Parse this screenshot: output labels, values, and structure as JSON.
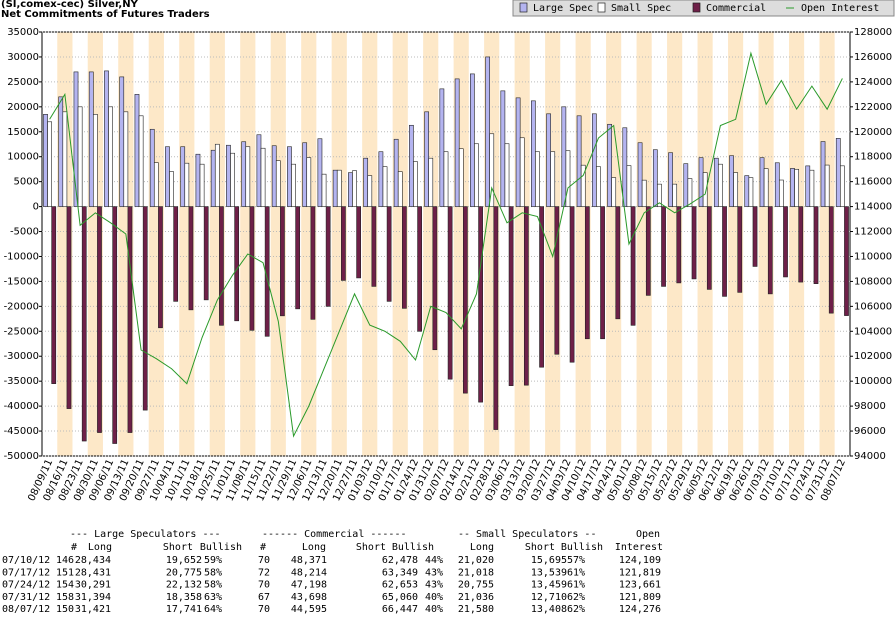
{
  "chart_data": {
    "type": "bar",
    "title": "(SI,comex-cec) Silver,NY",
    "subtitle": "Net Commitments of Futures Traders",
    "categories": [
      "08/09/11",
      "08/16/11",
      "08/23/11",
      "08/30/11",
      "09/06/11",
      "09/13/11",
      "09/20/11",
      "09/27/11",
      "10/04/11",
      "10/11/11",
      "10/18/11",
      "10/25/11",
      "11/01/11",
      "11/08/11",
      "11/15/11",
      "11/22/11",
      "11/29/11",
      "12/06/11",
      "12/13/11",
      "12/20/11",
      "12/27/11",
      "01/03/12",
      "01/10/12",
      "01/17/12",
      "01/24/12",
      "01/31/12",
      "02/07/12",
      "02/14/12",
      "02/21/12",
      "02/28/12",
      "03/06/12",
      "03/13/12",
      "03/20/12",
      "03/27/12",
      "04/03/12",
      "04/10/12",
      "04/17/12",
      "04/24/12",
      "05/01/12",
      "05/08/12",
      "05/15/12",
      "05/22/12",
      "05/29/12",
      "06/05/12",
      "06/12/12",
      "06/19/12",
      "06/26/12",
      "07/03/12",
      "07/10/12",
      "07/17/12",
      "07/24/12",
      "07/31/12",
      "08/07/12"
    ],
    "series": [
      {
        "name": "Large Spec",
        "color": "#b4b4f0",
        "values": [
          18500,
          22000,
          27000,
          27000,
          27200,
          26000,
          22500,
          15500,
          12000,
          12000,
          10500,
          11300,
          12300,
          13000,
          14400,
          12200,
          12000,
          12800,
          13600,
          7300,
          6800,
          9700,
          11000,
          13500,
          16300,
          19000,
          23600,
          25600,
          26600,
          30000,
          23200,
          21800,
          21200,
          18600,
          20000,
          18200,
          18600,
          16500,
          15800,
          12800,
          11400,
          10800,
          8600,
          9800,
          9700,
          10200,
          6200,
          9800,
          8782,
          7656,
          8159,
          13036,
          13680
        ]
      },
      {
        "name": "Small Spec",
        "color": "#ffffff",
        "values": [
          17000,
          19000,
          20000,
          18500,
          20000,
          19000,
          18200,
          8800,
          7000,
          8700,
          8500,
          12500,
          10700,
          12000,
          11700,
          9200,
          8500,
          9800,
          6500,
          7300,
          7200,
          6200,
          8000,
          7000,
          9000,
          9700,
          11000,
          11600,
          12600,
          14600,
          12600,
          13800,
          11000,
          11000,
          11200,
          8300,
          8000,
          5800,
          8200,
          5300,
          4500,
          4500,
          5600,
          6800,
          8500,
          6800,
          5800,
          7600,
          5325,
          7479,
          7296,
          8326,
          8172
        ]
      },
      {
        "name": "Commercial",
        "color": "#6e2048",
        "values": [
          -35500,
          -40500,
          -47000,
          -45300,
          -47500,
          -45300,
          -40800,
          -24300,
          -19000,
          -20700,
          -18700,
          -23800,
          -22900,
          -24800,
          -26000,
          -21900,
          -20500,
          -22600,
          -20000,
          -14800,
          -14300,
          -16000,
          -19000,
          -20400,
          -25000,
          -28700,
          -34600,
          -37400,
          -39200,
          -44700,
          -35900,
          -35800,
          -32200,
          -29600,
          -31200,
          -26500,
          -26500,
          -22500,
          -23800,
          -17800,
          -16000,
          -15300,
          -14500,
          -16600,
          -18000,
          -17200,
          -12000,
          -17500,
          -14107,
          -15135,
          -15455,
          -21362,
          -21852
        ]
      },
      {
        "name": "Open Interest",
        "color": "#2a9a2a",
        "type": "line",
        "axis": "y2",
        "values": [
          121000,
          123000,
          112500,
          113500,
          112700,
          111800,
          102500,
          101800,
          101000,
          99800,
          103500,
          106500,
          108500,
          110200,
          109500,
          104800,
          95600,
          98000,
          101000,
          104000,
          107000,
          104500,
          104000,
          103200,
          101700,
          106000,
          105500,
          104200,
          107000,
          115500,
          112700,
          113500,
          113200,
          110000,
          115500,
          116500,
          119500,
          120500,
          111000,
          113500,
          114300,
          113500,
          114200,
          115000,
          120500,
          121000,
          126300,
          122200,
          124109,
          121819,
          123661,
          121809,
          124276
        ]
      }
    ],
    "ylim": [
      -50000,
      35000
    ],
    "yticks": [
      -50000,
      -45000,
      -40000,
      -35000,
      -30000,
      -25000,
      -20000,
      -15000,
      -10000,
      -5000,
      0,
      5000,
      10000,
      15000,
      20000,
      25000,
      30000,
      35000
    ],
    "y2lim": [
      94000,
      128000
    ],
    "y2ticks": [
      94000,
      96000,
      98000,
      100000,
      102000,
      104000,
      106000,
      108000,
      110000,
      112000,
      114000,
      116000,
      118000,
      120000,
      122000,
      124000,
      126000,
      128000
    ],
    "grid": true,
    "legend": "top-right"
  },
  "table": {
    "groups": [
      "--- Large Speculators ---",
      "------ Commercial ------",
      "-- Small Speculators --",
      "Open"
    ],
    "columns": [
      "#",
      "Long",
      "Short",
      "Bullish",
      "#",
      "Long",
      "Short",
      "Bullish",
      "Long",
      "Short",
      "Bullish",
      "Interest"
    ],
    "rows": [
      [
        "07/10/12",
        "146",
        "28,434",
        "19,652",
        "59%",
        "70",
        "48,371",
        "62,478",
        "44%",
        "21,020",
        "15,695",
        "57%",
        "124,109"
      ],
      [
        "07/17/12",
        "151",
        "28,431",
        "20,775",
        "58%",
        "72",
        "48,214",
        "63,349",
        "43%",
        "21,018",
        "13,539",
        "61%",
        "121,819"
      ],
      [
        "07/24/12",
        "154",
        "30,291",
        "22,132",
        "58%",
        "70",
        "47,198",
        "62,653",
        "43%",
        "20,755",
        "13,459",
        "61%",
        "123,661"
      ],
      [
        "07/31/12",
        "158",
        "31,394",
        "18,358",
        "63%",
        "67",
        "43,698",
        "65,060",
        "40%",
        "21,036",
        "12,710",
        "62%",
        "121,809"
      ],
      [
        "08/07/12",
        "150",
        "31,421",
        "17,741",
        "64%",
        "70",
        "44,595",
        "66,447",
        "40%",
        "21,580",
        "13,408",
        "62%",
        "124,276"
      ]
    ]
  }
}
